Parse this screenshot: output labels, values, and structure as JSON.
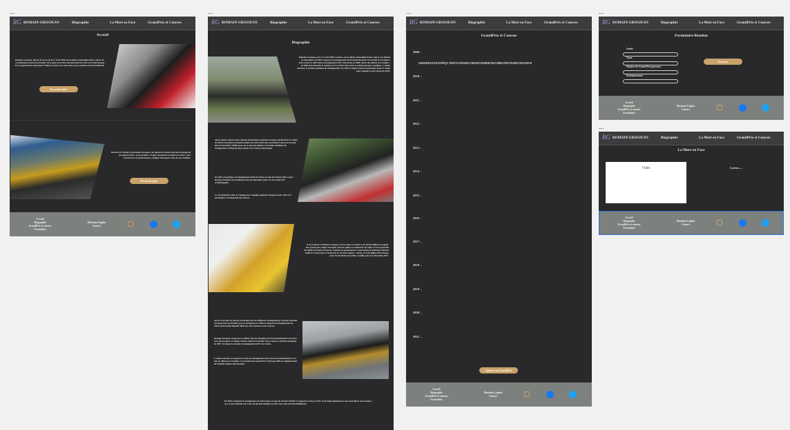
{
  "nav": {
    "logo": "RG",
    "name": "ROMAIN GROSJEAN",
    "links": [
      "Biographie",
      "La Mort en Face",
      "GrandPrix et Courses"
    ]
  },
  "footer": {
    "links": [
      "Accueil",
      "Biographie",
      "GrandPrix et courses",
      "Formulaire"
    ],
    "legal": [
      "Mentions Légales",
      "Contact"
    ]
  },
  "frame_label": "...",
  "accueil": {
    "title": "Accueil",
    "intro": "Romain Grosjean, âgé de 35 ans et né le 17 avril 1986 est un pilote automobile franco-suisse. Il a notamment couru en Formule 1 (F1) après avoir été couronné dans les GP2 et la Indy Racing. Il est aujourd'hui connu dans l'IndyCar Series à la suite d'un grave accident au GP de Bahreïn.",
    "intro_button": "En savoir plus",
    "discover": "Découvrez l'histoire de Romain Grosjean, son début en circuits dans une Formule de promotion (GP2...) en Formule 1 et plus récemment en IndyCar Series. Vous retrouverez ses performances, équipes ainsi que le choc de son accident.",
    "discover_button": "En savoir plus"
  },
  "biographie": {
    "title": "Biographie",
    "paragraphs": [
      "Romain Grosjean, né le 17 avril 1986 à Genève, est un pilote automobile franco-suisse. Il a débuté en monoplace en 2003, remporte le championnat de Formule Renault 2.0 en 2005, la Formule 3 Euro Series en 2007 puis le championnat GP2 Asia Series en 2008. Après des débuts en Formule 1 en 2009 chez Renault, il revient en F1 en 2012 chez Lotus et obtient plusieurs podiums. L'année suivante, il termine septième du championnat. En 2016, il rejoint l'écurie américaine Haas F1 Team pour laquelle il court jusqu'en 2020.",
      "Après quatre saisons dans l'équipe britannique, Romain Grosjean rejoint Haas F1 Team en 2016 et marque les premiers points de cette écurie dès sa première course au Grand Prix d'Australie à Melbourne, en se classant sixième. Il termine treizième du championnat. Il dispute cinq saisons avec l'écurie américaine.",
      "En 2021, il participe au championnat IndyCar Series au sein de l'écurie Dale Coyne Racing et obtient trois podiums dont une deuxième place sur le Grand Prix d'Indianapolis.",
      "Le 24 septembre 2021, il s'engage avec l'équipe Andretti Autosport pour 2022 et il participera à l'intégralité des courses.",
      "Il est le fils de Christian Grosjean, avocat suisse à Genève et de Marie-Hélène Grosjean. Son grand-père, Roger Grosjean, était un pilote et conducteur de rallye. Il est le petit-fils du célèbre Fernand Grosjean. Il épouse la présentatrice et journaliste de télévision Marion Jollès le 27 juin 2012 à Chamonix et ont trois enfants : Sacha, né le 29 juillet 2014, Simon, né le 16 mai 2016 et une fille, Camille, née le 31 décembre 2017.",
      "Après avoir fait ses classes en karting dans les différents championnats français, Romain Grosjean fait ses premiers pas en monoplace en 2003 et remporte le championnat de Suisse de Formule Renault 1600 avec dix victoires en dix courses.",
      "Romain Grosjean remporte en 2005 le titre de champion de Formule Renault 2.0 France avec dix victoires. Il rejoint l'écurie ASM en Formule 3 Euro Series et devient champion en 2007. Il remporte ensuite le championnat GP2 Asia Series.",
      "L'année suivante, il remporte le titre en championnat de France Formule Renault 2.0 et fait ses débuts en Formule 1 à l'occasion du Grand Prix d'Europe 2009 en remplacement de Nelsinho Piquet chez Renault.",
      "En 2010, il dispute le championnat de GP2 Series au sein de l'écurie DAMS et remporte le titre en 2011. Il participe également à des essais libres en Formule 1 avec Lotus Renault GP, avant de devenir titulaire en 2012 aux côtés de Kimi Räikkönen."
    ]
  },
  "grandprix": {
    "title": "GrandPrix et Courses",
    "years": [
      "2009 –",
      "2010 –",
      "2011 –",
      "2012 –",
      "2013 –",
      "2014 –",
      "2015 –",
      "2016 –",
      "2017 –",
      "2018 –",
      "2019 –",
      "2020 –",
      "2021 –"
    ],
    "entry": "GKDFKDYEZNTZNPQZ JNRTVUNZSMZI NBZMYNZMDEVBZVMBVZMVNSZBOVRYZMVB",
    "button": "Ajouter un GrandPrix"
  },
  "formulaire": {
    "title": "Formulaire Résultat",
    "fields": [
      "Année",
      "Team",
      "Nombre de Grand Prix parcours",
      "Positionnement"
    ],
    "button": "Envoyer"
  },
  "mort": {
    "title": "La Mort en Face",
    "video": "Vidéo",
    "text": "Lorem......"
  }
}
